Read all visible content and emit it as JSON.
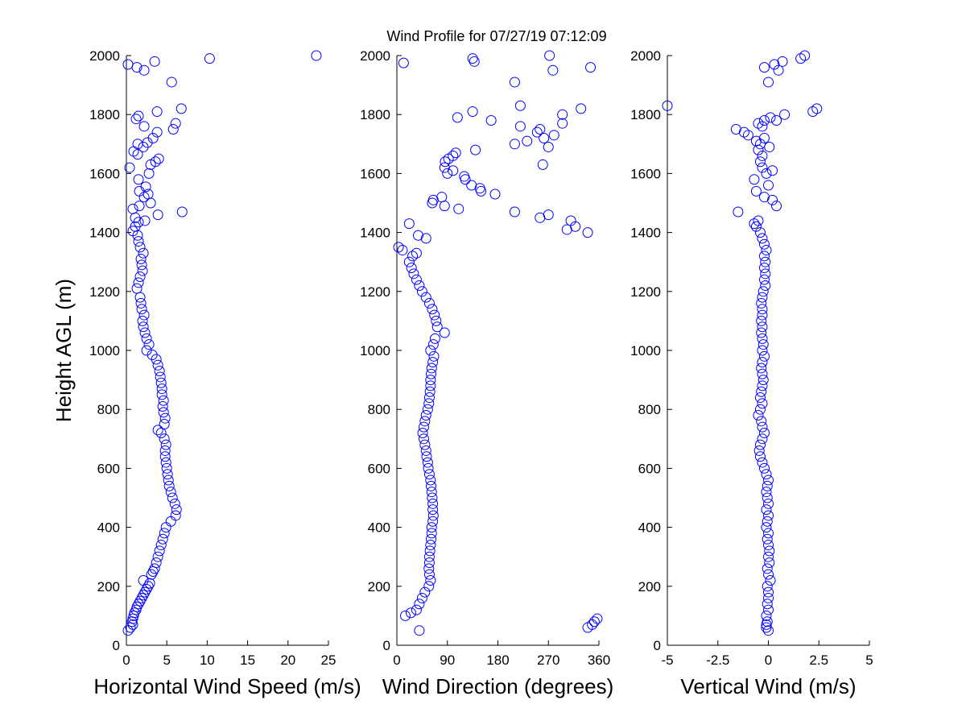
{
  "title": "Wind Profile for  07/27/19 07:12:09",
  "shared_ylabel": "Height AGL (m)",
  "marker_color": "#0000ff",
  "chart_data": [
    {
      "type": "scatter",
      "xlabel": "Horizontal Wind Speed (m/s)",
      "ylabel": "Height AGL (m)",
      "xlim": [
        0,
        25
      ],
      "ylim": [
        0,
        2000
      ],
      "xticks": [
        "0",
        "5",
        "10",
        "15",
        "20",
        "25"
      ],
      "yticks": [
        "0",
        "200",
        "400",
        "600",
        "800",
        "1000",
        "1200",
        "1400",
        "1600",
        "1800",
        "2000"
      ],
      "marker": "open-circle",
      "grid": false,
      "points": [
        [
          0.2,
          50
        ],
        [
          0.5,
          60
        ],
        [
          0.8,
          70
        ],
        [
          0.7,
          80
        ],
        [
          0.8,
          90
        ],
        [
          0.9,
          100
        ],
        [
          1.0,
          110
        ],
        [
          1.2,
          120
        ],
        [
          1.3,
          130
        ],
        [
          1.5,
          140
        ],
        [
          1.7,
          150
        ],
        [
          1.9,
          160
        ],
        [
          2.1,
          170
        ],
        [
          2.3,
          180
        ],
        [
          2.5,
          190
        ],
        [
          2.7,
          200
        ],
        [
          2.9,
          210
        ],
        [
          2.1,
          220
        ],
        [
          3.1,
          240
        ],
        [
          3.3,
          250
        ],
        [
          3.5,
          260
        ],
        [
          3.7,
          280
        ],
        [
          3.9,
          300
        ],
        [
          4.1,
          320
        ],
        [
          4.3,
          340
        ],
        [
          4.5,
          360
        ],
        [
          4.7,
          380
        ],
        [
          4.9,
          400
        ],
        [
          5.5,
          420
        ],
        [
          6.1,
          440
        ],
        [
          6.2,
          460
        ],
        [
          6.0,
          480
        ],
        [
          5.7,
          500
        ],
        [
          5.5,
          520
        ],
        [
          5.3,
          540
        ],
        [
          5.2,
          560
        ],
        [
          5.1,
          580
        ],
        [
          5.0,
          600
        ],
        [
          4.9,
          620
        ],
        [
          4.8,
          640
        ],
        [
          4.8,
          660
        ],
        [
          4.9,
          680
        ],
        [
          4.7,
          700
        ],
        [
          4.3,
          720
        ],
        [
          3.9,
          730
        ],
        [
          4.7,
          750
        ],
        [
          4.8,
          770
        ],
        [
          4.6,
          790
        ],
        [
          4.5,
          810
        ],
        [
          4.6,
          830
        ],
        [
          4.4,
          850
        ],
        [
          4.4,
          870
        ],
        [
          4.3,
          890
        ],
        [
          4.2,
          910
        ],
        [
          4.1,
          930
        ],
        [
          3.9,
          950
        ],
        [
          3.7,
          970
        ],
        [
          3.2,
          985
        ],
        [
          2.5,
          1000
        ],
        [
          2.8,
          1020
        ],
        [
          2.5,
          1040
        ],
        [
          2.3,
          1060
        ],
        [
          2.1,
          1080
        ],
        [
          2.0,
          1100
        ],
        [
          2.2,
          1120
        ],
        [
          1.9,
          1140
        ],
        [
          1.8,
          1160
        ],
        [
          1.7,
          1180
        ],
        [
          1.3,
          1210
        ],
        [
          1.5,
          1230
        ],
        [
          1.7,
          1250
        ],
        [
          2.0,
          1270
        ],
        [
          1.9,
          1290
        ],
        [
          1.8,
          1310
        ],
        [
          2.1,
          1330
        ],
        [
          1.7,
          1350
        ],
        [
          1.5,
          1370
        ],
        [
          1.4,
          1390
        ],
        [
          0.8,
          1405
        ],
        [
          1.1,
          1420
        ],
        [
          1.5,
          1435
        ],
        [
          2.3,
          1440
        ],
        [
          1.1,
          1450
        ],
        [
          3.9,
          1460
        ],
        [
          6.9,
          1470
        ],
        [
          0.8,
          1480
        ],
        [
          1.6,
          1490
        ],
        [
          3.0,
          1500
        ],
        [
          2.2,
          1520
        ],
        [
          2.7,
          1530
        ],
        [
          1.6,
          1540
        ],
        [
          2.4,
          1555
        ],
        [
          1.5,
          1580
        ],
        [
          2.8,
          1600
        ],
        [
          0.4,
          1620
        ],
        [
          3.0,
          1630
        ],
        [
          3.6,
          1640
        ],
        [
          4.0,
          1650
        ],
        [
          1.4,
          1665
        ],
        [
          0.9,
          1675
        ],
        [
          2.1,
          1690
        ],
        [
          1.4,
          1700
        ],
        [
          2.6,
          1705
        ],
        [
          3.3,
          1720
        ],
        [
          3.8,
          1740
        ],
        [
          5.8,
          1750
        ],
        [
          2.2,
          1760
        ],
        [
          6.1,
          1770
        ],
        [
          1.2,
          1785
        ],
        [
          1.5,
          1795
        ],
        [
          3.8,
          1810
        ],
        [
          6.8,
          1820
        ],
        [
          5.6,
          1910
        ],
        [
          2.2,
          1950
        ],
        [
          1.3,
          1960
        ],
        [
          0.2,
          1970
        ],
        [
          3.5,
          1980
        ],
        [
          10.3,
          1990
        ],
        [
          23.5,
          2000
        ]
      ]
    },
    {
      "type": "scatter",
      "xlabel": "Wind Direction (degrees)",
      "ylabel": "",
      "xlim": [
        0,
        360
      ],
      "ylim": [
        0,
        2000
      ],
      "xticks": [
        "0",
        "90",
        "180",
        "270",
        "360"
      ],
      "yticks": [
        "0",
        "200",
        "400",
        "600",
        "800",
        "1000",
        "1200",
        "1400",
        "1600",
        "1800",
        "2000"
      ],
      "marker": "open-circle",
      "grid": false,
      "points": [
        [
          40,
          50
        ],
        [
          340,
          60
        ],
        [
          348,
          70
        ],
        [
          352,
          80
        ],
        [
          357,
          90
        ],
        [
          15,
          100
        ],
        [
          25,
          110
        ],
        [
          35,
          120
        ],
        [
          40,
          140
        ],
        [
          45,
          160
        ],
        [
          50,
          180
        ],
        [
          57,
          200
        ],
        [
          60,
          220
        ],
        [
          58,
          240
        ],
        [
          57,
          260
        ],
        [
          58,
          280
        ],
        [
          58,
          300
        ],
        [
          59,
          320
        ],
        [
          60,
          340
        ],
        [
          61,
          360
        ],
        [
          62,
          380
        ],
        [
          62,
          400
        ],
        [
          64,
          420
        ],
        [
          65,
          440
        ],
        [
          64,
          460
        ],
        [
          64,
          480
        ],
        [
          63,
          500
        ],
        [
          62,
          520
        ],
        [
          61,
          540
        ],
        [
          60,
          560
        ],
        [
          58,
          580
        ],
        [
          56,
          600
        ],
        [
          55,
          620
        ],
        [
          53,
          640
        ],
        [
          52,
          660
        ],
        [
          50,
          680
        ],
        [
          48,
          700
        ],
        [
          46,
          720
        ],
        [
          48,
          740
        ],
        [
          50,
          760
        ],
        [
          52,
          780
        ],
        [
          55,
          800
        ],
        [
          57,
          820
        ],
        [
          58,
          840
        ],
        [
          59,
          860
        ],
        [
          60,
          880
        ],
        [
          60,
          900
        ],
        [
          61,
          920
        ],
        [
          62,
          940
        ],
        [
          64,
          960
        ],
        [
          66,
          980
        ],
        [
          60,
          1000
        ],
        [
          65,
          1020
        ],
        [
          68,
          1040
        ],
        [
          85,
          1060
        ],
        [
          72,
          1080
        ],
        [
          70,
          1100
        ],
        [
          67,
          1120
        ],
        [
          63,
          1140
        ],
        [
          58,
          1160
        ],
        [
          52,
          1180
        ],
        [
          45,
          1200
        ],
        [
          40,
          1220
        ],
        [
          35,
          1240
        ],
        [
          30,
          1260
        ],
        [
          26,
          1280
        ],
        [
          22,
          1300
        ],
        [
          28,
          1320
        ],
        [
          35,
          1330
        ],
        [
          10,
          1340
        ],
        [
          3,
          1350
        ],
        [
          52,
          1380
        ],
        [
          38,
          1390
        ],
        [
          22,
          1430
        ],
        [
          340,
          1400
        ],
        [
          303,
          1410
        ],
        [
          318,
          1420
        ],
        [
          310,
          1440
        ],
        [
          210,
          1470
        ],
        [
          270,
          1460
        ],
        [
          255,
          1450
        ],
        [
          110,
          1480
        ],
        [
          85,
          1490
        ],
        [
          63,
          1500
        ],
        [
          65,
          1510
        ],
        [
          80,
          1520
        ],
        [
          175,
          1530
        ],
        [
          150,
          1540
        ],
        [
          148,
          1550
        ],
        [
          133,
          1560
        ],
        [
          122,
          1580
        ],
        [
          120,
          1590
        ],
        [
          90,
          1600
        ],
        [
          100,
          1610
        ],
        [
          85,
          1620
        ],
        [
          86,
          1640
        ],
        [
          92,
          1650
        ],
        [
          100,
          1660
        ],
        [
          105,
          1670
        ],
        [
          140,
          1680
        ],
        [
          270,
          1690
        ],
        [
          262,
          1720
        ],
        [
          232,
          1710
        ],
        [
          210,
          1700
        ],
        [
          250,
          1740
        ],
        [
          255,
          1750
        ],
        [
          280,
          1730
        ],
        [
          220,
          1760
        ],
        [
          295,
          1770
        ],
        [
          168,
          1780
        ],
        [
          108,
          1790
        ],
        [
          295,
          1800
        ],
        [
          135,
          1810
        ],
        [
          328,
          1820
        ],
        [
          220,
          1830
        ],
        [
          260,
          1630
        ],
        [
          210,
          1910
        ],
        [
          345,
          1960
        ],
        [
          278,
          1950
        ],
        [
          12,
          1975
        ],
        [
          138,
          1980
        ],
        [
          135,
          1990
        ],
        [
          272,
          2000
        ]
      ]
    },
    {
      "type": "scatter",
      "xlabel": "Vertical Wind (m/s)",
      "ylabel": "",
      "xlim": [
        -5,
        5
      ],
      "ylim": [
        0,
        2000
      ],
      "xticks": [
        "-5",
        "-2.5",
        "0",
        "2.5",
        "5"
      ],
      "yticks": [
        "0",
        "200",
        "400",
        "600",
        "800",
        "1000",
        "1200",
        "1400",
        "1600",
        "1800",
        "2000"
      ],
      "marker": "open-circle",
      "grid": false,
      "points": [
        [
          0.0,
          50
        ],
        [
          -0.1,
          60
        ],
        [
          -0.1,
          70
        ],
        [
          -0.05,
          80
        ],
        [
          -0.1,
          100
        ],
        [
          0.0,
          120
        ],
        [
          -0.05,
          140
        ],
        [
          0.0,
          160
        ],
        [
          0.0,
          180
        ],
        [
          -0.05,
          200
        ],
        [
          0.1,
          220
        ],
        [
          0.0,
          240
        ],
        [
          -0.05,
          260
        ],
        [
          0.05,
          280
        ],
        [
          0.0,
          300
        ],
        [
          0.05,
          320
        ],
        [
          0.0,
          340
        ],
        [
          -0.05,
          360
        ],
        [
          0.0,
          380
        ],
        [
          -0.1,
          400
        ],
        [
          -0.05,
          420
        ],
        [
          0.0,
          440
        ],
        [
          -0.1,
          460
        ],
        [
          0.0,
          480
        ],
        [
          -0.05,
          500
        ],
        [
          -0.1,
          520
        ],
        [
          -0.05,
          540
        ],
        [
          0.0,
          560
        ],
        [
          -0.1,
          580
        ],
        [
          -0.2,
          600
        ],
        [
          -0.3,
          620
        ],
        [
          -0.4,
          640
        ],
        [
          -0.45,
          660
        ],
        [
          -0.4,
          680
        ],
        [
          -0.3,
          700
        ],
        [
          -0.2,
          720
        ],
        [
          -0.3,
          740
        ],
        [
          -0.35,
          760
        ],
        [
          -0.5,
          780
        ],
        [
          -0.4,
          800
        ],
        [
          -0.3,
          820
        ],
        [
          -0.4,
          840
        ],
        [
          -0.35,
          860
        ],
        [
          -0.3,
          880
        ],
        [
          -0.25,
          900
        ],
        [
          -0.3,
          920
        ],
        [
          -0.35,
          940
        ],
        [
          -0.3,
          960
        ],
        [
          -0.2,
          980
        ],
        [
          -0.3,
          1000
        ],
        [
          -0.25,
          1020
        ],
        [
          -0.3,
          1040
        ],
        [
          -0.35,
          1060
        ],
        [
          -0.3,
          1080
        ],
        [
          -0.35,
          1100
        ],
        [
          -0.3,
          1120
        ],
        [
          -0.3,
          1140
        ],
        [
          -0.35,
          1160
        ],
        [
          -0.3,
          1180
        ],
        [
          -0.25,
          1200
        ],
        [
          -0.15,
          1220
        ],
        [
          -0.2,
          1240
        ],
        [
          -0.15,
          1260
        ],
        [
          -0.2,
          1280
        ],
        [
          -0.15,
          1300
        ],
        [
          -0.2,
          1320
        ],
        [
          -0.1,
          1340
        ],
        [
          -0.2,
          1360
        ],
        [
          -0.3,
          1380
        ],
        [
          -0.4,
          1400
        ],
        [
          -0.6,
          1420
        ],
        [
          -0.7,
          1430
        ],
        [
          -0.5,
          1440
        ],
        [
          -1.5,
          1470
        ],
        [
          0.4,
          1490
        ],
        [
          0.2,
          1510
        ],
        [
          -0.2,
          1520
        ],
        [
          -0.6,
          1540
        ],
        [
          0.0,
          1560
        ],
        [
          -0.7,
          1580
        ],
        [
          -0.1,
          1600
        ],
        [
          0.2,
          1610
        ],
        [
          -0.3,
          1620
        ],
        [
          -0.4,
          1640
        ],
        [
          -0.3,
          1660
        ],
        [
          -0.5,
          1680
        ],
        [
          -0.4,
          1700
        ],
        [
          -0.6,
          1710
        ],
        [
          -0.2,
          1720
        ],
        [
          -1.0,
          1730
        ],
        [
          -1.2,
          1740
        ],
        [
          -1.6,
          1750
        ],
        [
          -0.3,
          1760
        ],
        [
          -0.5,
          1770
        ],
        [
          -0.2,
          1780
        ],
        [
          0.1,
          1790
        ],
        [
          0.4,
          1780
        ],
        [
          0.8,
          1800
        ],
        [
          2.2,
          1810
        ],
        [
          2.4,
          1820
        ],
        [
          -5.0,
          1830
        ],
        [
          0.0,
          1910
        ],
        [
          0.5,
          1950
        ],
        [
          -0.2,
          1960
        ],
        [
          0.3,
          1970
        ],
        [
          0.7,
          1980
        ],
        [
          1.6,
          1990
        ],
        [
          1.8,
          2000
        ],
        [
          0.05,
          1690
        ]
      ]
    }
  ]
}
